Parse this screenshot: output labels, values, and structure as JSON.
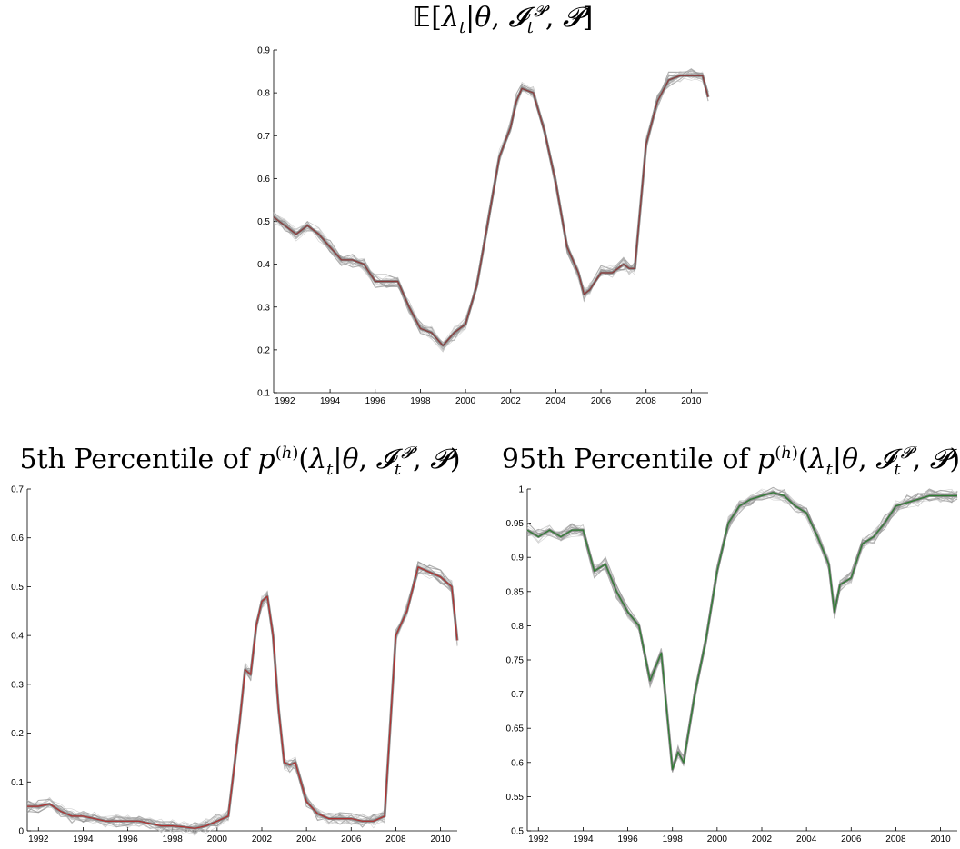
{
  "chart_data": [
    {
      "type": "line",
      "title": "E[λt|θ, It^P, P]",
      "x_ticks": [
        1992,
        1994,
        1996,
        1998,
        2000,
        2002,
        2004,
        2006,
        2008,
        2010
      ],
      "y_ticks": [
        0.1,
        0.2,
        0.3,
        0.4,
        0.5,
        0.6,
        0.7,
        0.8,
        0.9
      ],
      "xlim": [
        1991.5,
        2010.75
      ],
      "ylim": [
        0.1,
        0.9
      ],
      "grid": false,
      "series": [
        {
          "color": "#8b3a3a",
          "x": [
            1991.5,
            1992.0,
            1992.5,
            1993.0,
            1993.5,
            1994.0,
            1994.5,
            1995.0,
            1995.5,
            1996.0,
            1996.5,
            1997.0,
            1997.5,
            1998.0,
            1998.5,
            1999.0,
            1999.5,
            2000.0,
            2000.5,
            2001.0,
            2001.5,
            2002.0,
            2002.25,
            2002.5,
            2003.0,
            2003.5,
            2004.0,
            2004.5,
            2005.0,
            2005.25,
            2005.5,
            2006.0,
            2006.5,
            2007.0,
            2007.25,
            2007.5,
            2008.0,
            2008.5,
            2009.0,
            2009.5,
            2010.0,
            2010.5,
            2010.75
          ],
          "y": [
            0.51,
            0.49,
            0.47,
            0.49,
            0.47,
            0.44,
            0.41,
            0.41,
            0.4,
            0.36,
            0.36,
            0.36,
            0.3,
            0.25,
            0.24,
            0.21,
            0.24,
            0.26,
            0.35,
            0.5,
            0.65,
            0.72,
            0.78,
            0.81,
            0.8,
            0.71,
            0.59,
            0.44,
            0.38,
            0.33,
            0.34,
            0.38,
            0.38,
            0.4,
            0.39,
            0.39,
            0.68,
            0.78,
            0.83,
            0.84,
            0.84,
            0.84,
            0.79
          ]
        }
      ]
    },
    {
      "type": "line",
      "title": "5th Percentile of p(h)(λt|θ, It^P, P)",
      "x_ticks": [
        1992,
        1994,
        1996,
        1998,
        2000,
        2002,
        2004,
        2006,
        2008,
        2010
      ],
      "y_ticks": [
        0,
        0.1,
        0.2,
        0.3,
        0.4,
        0.5,
        0.6,
        0.7
      ],
      "xlim": [
        1991.5,
        2010.75
      ],
      "ylim": [
        0,
        0.7
      ],
      "grid": false,
      "series": [
        {
          "color": "#b03030",
          "x": [
            1991.5,
            1992.0,
            1992.5,
            1993.0,
            1993.5,
            1994.0,
            1994.5,
            1995.0,
            1995.5,
            1996.0,
            1996.5,
            1997.0,
            1997.5,
            1998.0,
            1998.5,
            1999.0,
            1999.5,
            2000.0,
            2000.5,
            2001.0,
            2001.25,
            2001.5,
            2001.75,
            2002.0,
            2002.25,
            2002.5,
            2002.75,
            2003.0,
            2003.25,
            2003.5,
            2004.0,
            2004.5,
            2005.0,
            2005.5,
            2006.0,
            2006.5,
            2007.0,
            2007.5,
            2008.0,
            2008.5,
            2009.0,
            2009.5,
            2010.0,
            2010.5,
            2010.75
          ],
          "y": [
            0.05,
            0.05,
            0.055,
            0.04,
            0.03,
            0.03,
            0.025,
            0.02,
            0.02,
            0.02,
            0.02,
            0.015,
            0.01,
            0.01,
            0.008,
            0.005,
            0.01,
            0.02,
            0.03,
            0.22,
            0.33,
            0.32,
            0.42,
            0.47,
            0.48,
            0.4,
            0.25,
            0.14,
            0.135,
            0.14,
            0.06,
            0.035,
            0.025,
            0.025,
            0.025,
            0.02,
            0.02,
            0.03,
            0.4,
            0.45,
            0.54,
            0.53,
            0.52,
            0.5,
            0.39
          ]
        }
      ]
    },
    {
      "type": "line",
      "title": "95th Percentile of p(h)(λt|θ, It^P, P)",
      "x_ticks": [
        1992,
        1994,
        1996,
        1998,
        2000,
        2002,
        2004,
        2006,
        2008,
        2010
      ],
      "y_ticks": [
        0.5,
        0.55,
        0.6,
        0.65,
        0.7,
        0.75,
        0.8,
        0.85,
        0.9,
        0.95,
        1
      ],
      "xlim": [
        1991.5,
        2010.75
      ],
      "ylim": [
        0.5,
        1.0
      ],
      "grid": false,
      "series": [
        {
          "color": "#2e7d32",
          "x": [
            1991.5,
            1992.0,
            1992.5,
            1993.0,
            1993.5,
            1994.0,
            1994.5,
            1995.0,
            1995.5,
            1996.0,
            1996.5,
            1997.0,
            1997.5,
            1998.0,
            1998.25,
            1998.5,
            1999.0,
            1999.5,
            2000.0,
            2000.5,
            2001.0,
            2001.5,
            2002.0,
            2002.5,
            2003.0,
            2003.5,
            2004.0,
            2004.5,
            2005.0,
            2005.25,
            2005.5,
            2006.0,
            2006.5,
            2007.0,
            2007.5,
            2008.0,
            2008.5,
            2009.0,
            2009.5,
            2010.0,
            2010.5,
            2010.75
          ],
          "y": [
            0.94,
            0.93,
            0.94,
            0.93,
            0.94,
            0.94,
            0.88,
            0.89,
            0.85,
            0.82,
            0.8,
            0.72,
            0.76,
            0.59,
            0.615,
            0.6,
            0.7,
            0.78,
            0.88,
            0.95,
            0.975,
            0.985,
            0.99,
            0.995,
            0.99,
            0.975,
            0.965,
            0.93,
            0.89,
            0.82,
            0.86,
            0.87,
            0.92,
            0.93,
            0.95,
            0.975,
            0.98,
            0.985,
            0.99,
            0.99,
            0.99,
            0.99
          ]
        }
      ]
    }
  ]
}
